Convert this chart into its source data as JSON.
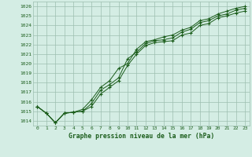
{
  "title": "Graphe pression niveau de la mer (hPa)",
  "x_values": [
    0,
    1,
    2,
    3,
    4,
    5,
    6,
    7,
    8,
    9,
    10,
    11,
    12,
    13,
    14,
    15,
    16,
    17,
    18,
    19,
    20,
    21,
    22,
    23
  ],
  "series1": [
    1015.5,
    1014.8,
    1013.8,
    1014.8,
    1014.9,
    1015.0,
    1015.5,
    1016.8,
    1017.5,
    1018.2,
    1019.8,
    1021.0,
    1021.9,
    1022.2,
    1022.3,
    1022.4,
    1023.0,
    1023.2,
    1024.0,
    1024.2,
    1024.8,
    1025.0,
    1025.3,
    1025.5
  ],
  "series2": [
    1015.5,
    1014.8,
    1013.8,
    1014.8,
    1014.9,
    1015.0,
    1015.8,
    1017.2,
    1017.8,
    1018.5,
    1020.5,
    1021.2,
    1022.1,
    1022.4,
    1022.5,
    1022.7,
    1023.3,
    1023.6,
    1024.3,
    1024.5,
    1025.0,
    1025.2,
    1025.6,
    1025.8
  ],
  "series3": [
    1015.5,
    1014.8,
    1013.8,
    1014.8,
    1014.9,
    1015.2,
    1016.2,
    1017.5,
    1018.2,
    1019.5,
    1020.0,
    1021.5,
    1022.3,
    1022.5,
    1022.8,
    1023.0,
    1023.5,
    1023.8,
    1024.5,
    1024.7,
    1025.2,
    1025.5,
    1025.8,
    1026.0
  ],
  "ylim_min": 1013.5,
  "ylim_max": 1026.5,
  "xlim_min": -0.5,
  "xlim_max": 23.5,
  "bg_color": "#d4ede4",
  "line_color": "#1a5c1a",
  "grid_color": "#9dbfb0",
  "title_color": "#1a5c1a",
  "tick_fontsize": 4.5,
  "title_fontsize": 5.8,
  "figwidth": 3.2,
  "figheight": 2.0,
  "dpi": 100
}
